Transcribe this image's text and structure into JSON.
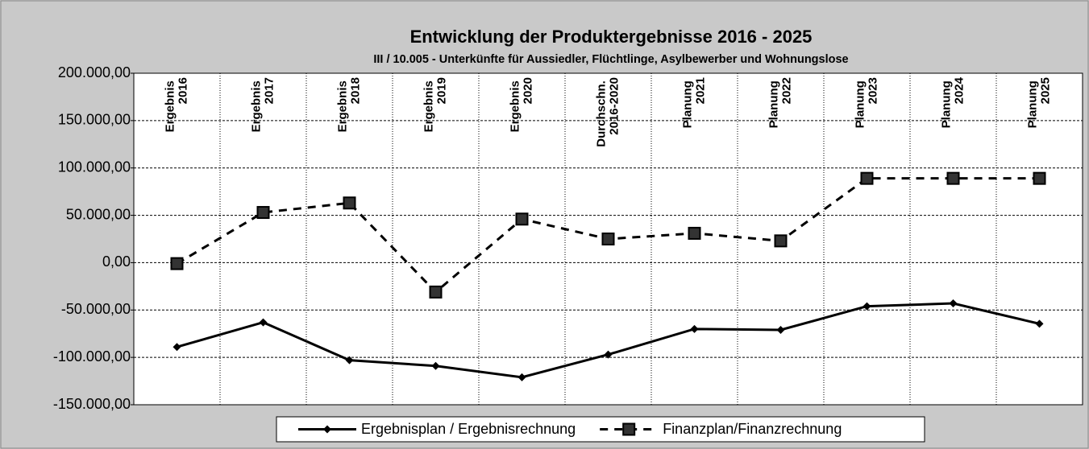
{
  "chart_data": {
    "type": "line",
    "title": "Entwicklung  der  Produktergebnisse  2016  -  2025",
    "subtitle": "III  /  10.005  -  Unterkünfte  für  Aussiedler,  Flüchtlinge,  Asylbewerber  und  Wohnungslose",
    "categories": [
      "Ergebnis 2016",
      "Ergebnis 2017",
      "Ergebnis 2018",
      "Ergebnis 2019",
      "Ergebnis 2020",
      "Durchschn. 2016-2020",
      "Planung 2021",
      "Planung 2022",
      "Planung 2023",
      "Planung 2024",
      "Planung 2025"
    ],
    "series": [
      {
        "name": "Ergebnisplan / Ergebnisrechnung",
        "color": "#000000",
        "values": [
          -89000,
          -63000,
          -103000,
          -109000,
          -121000,
          -97000,
          -70000,
          -71000,
          -46000,
          -43000,
          -64500
        ]
      },
      {
        "name": "Finanzplan/Finanzrechnung",
        "color": "#000000",
        "values": [
          -1000,
          53000,
          63000,
          -31000,
          46000,
          25000,
          31000,
          23000,
          89000,
          89000,
          89000
        ]
      }
    ],
    "ylim": [
      -150000,
      200000
    ],
    "yticks": [
      {
        "value": -150000,
        "label": "-150.000,00"
      },
      {
        "value": -100000,
        "label": "-100.000,00"
      },
      {
        "value": -50000,
        "label": "-50.000,00"
      },
      {
        "value": 0,
        "label": "0,00"
      },
      {
        "value": 50000,
        "label": "50.000,00"
      },
      {
        "value": 100000,
        "label": "100.000,00"
      },
      {
        "value": 150000,
        "label": "150.000,00"
      },
      {
        "value": 200000,
        "label": "200.000,00"
      }
    ],
    "grid": true,
    "legend": "bottom"
  }
}
